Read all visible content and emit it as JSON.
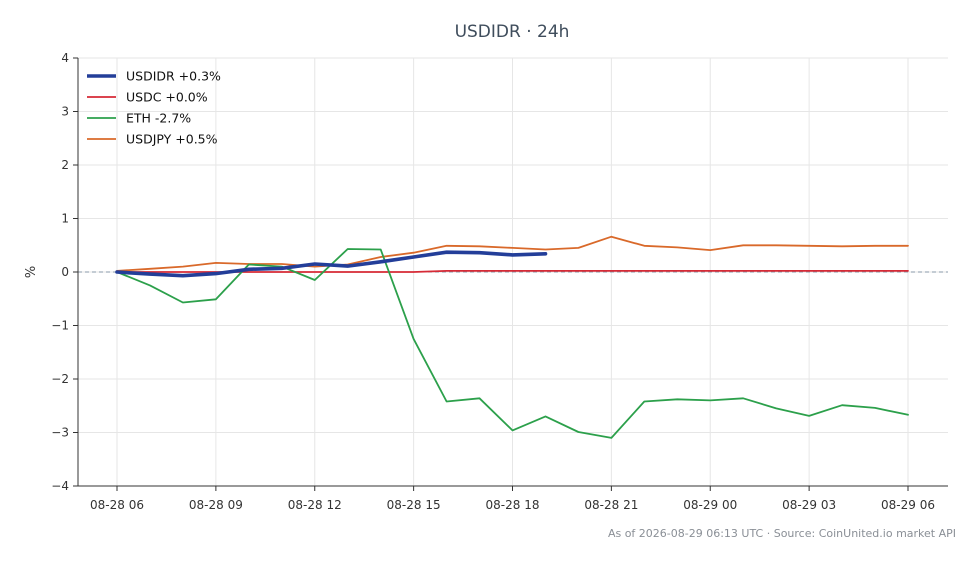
{
  "chart_data": {
    "type": "line",
    "title": "USDIDR · 24h",
    "xlabel": "",
    "ylabel": "%",
    "ylim": [
      -4,
      4
    ],
    "yticks": [
      "4",
      "3",
      "2",
      "1",
      "0",
      "−1",
      "−2",
      "−3",
      "−4"
    ],
    "ytick_values": [
      4,
      3,
      2,
      1,
      0,
      -1,
      -2,
      -3,
      -4
    ],
    "xticks": [
      {
        "label": "08-28 06",
        "hour": 0
      },
      {
        "label": "08-28 09",
        "hour": 3
      },
      {
        "label": "08-28 12",
        "hour": 6
      },
      {
        "label": "08-28 15",
        "hour": 9
      },
      {
        "label": "08-28 18",
        "hour": 12
      },
      {
        "label": "08-28 21",
        "hour": 15
      },
      {
        "label": "08-29 00",
        "hour": 18
      },
      {
        "label": "08-29 03",
        "hour": 21
      },
      {
        "label": "08-29 06",
        "hour": 24
      }
    ],
    "xlim": [
      0,
      24
    ],
    "grid": true,
    "legend_position": "top-left",
    "zero_line": true,
    "series": [
      {
        "name": "USDIDR +0.3%",
        "color": "#233e99",
        "width": 3.6,
        "x": [
          0,
          1,
          2,
          3,
          4,
          5,
          6,
          7,
          8,
          9,
          10,
          11,
          12,
          13
        ],
        "values": [
          0.0,
          -0.04,
          -0.07,
          -0.03,
          0.05,
          0.07,
          0.15,
          0.11,
          0.19,
          0.28,
          0.37,
          0.36,
          0.32,
          0.34
        ]
      },
      {
        "name": "USDC +0.0%",
        "color": "#d62a36",
        "width": 1.8,
        "x": [
          0,
          1,
          2,
          3,
          4,
          5,
          6,
          7,
          8,
          9,
          10,
          11,
          12,
          13,
          14,
          15,
          16,
          17,
          18,
          19,
          20,
          21,
          22,
          23,
          24
        ],
        "values": [
          0.0,
          0.0,
          0.0,
          0.0,
          0.0,
          0.0,
          0.0,
          0.0,
          0.0,
          0.0,
          0.02,
          0.02,
          0.02,
          0.02,
          0.02,
          0.02,
          0.02,
          0.02,
          0.02,
          0.02,
          0.02,
          0.02,
          0.02,
          0.02,
          0.02
        ]
      },
      {
        "name": "ETH -2.7%",
        "color": "#2ca04b",
        "width": 1.8,
        "x": [
          0,
          1,
          2,
          3,
          4,
          5,
          6,
          7,
          8,
          9,
          10,
          11,
          12,
          13,
          14,
          15,
          16,
          17,
          18,
          19,
          20,
          21,
          22,
          23,
          24
        ],
        "values": [
          0.0,
          -0.25,
          -0.57,
          -0.51,
          0.14,
          0.1,
          -0.15,
          0.43,
          0.42,
          -1.25,
          -2.42,
          -2.36,
          -2.96,
          -2.7,
          -2.99,
          -3.1,
          -2.42,
          -2.38,
          -2.4,
          -2.36,
          -2.55,
          -2.69,
          -2.49,
          -2.54,
          -2.67
        ]
      },
      {
        "name": "USDJPY +0.5%",
        "color": "#d9692a",
        "width": 1.8,
        "x": [
          0,
          1,
          2,
          3,
          4,
          5,
          6,
          7,
          8,
          9,
          10,
          11,
          12,
          13,
          14,
          15,
          16,
          17,
          18,
          19,
          20,
          21,
          22,
          23,
          24
        ],
        "values": [
          0.02,
          0.06,
          0.1,
          0.17,
          0.15,
          0.15,
          0.1,
          0.14,
          0.28,
          0.36,
          0.49,
          0.48,
          0.45,
          0.42,
          0.45,
          0.66,
          0.49,
          0.46,
          0.41,
          0.5,
          0.5,
          0.49,
          0.48,
          0.49,
          0.49
        ]
      }
    ]
  },
  "footer": {
    "text": "As of 2026-08-29 06:13 UTC · Source: CoinUnited.io market API"
  }
}
